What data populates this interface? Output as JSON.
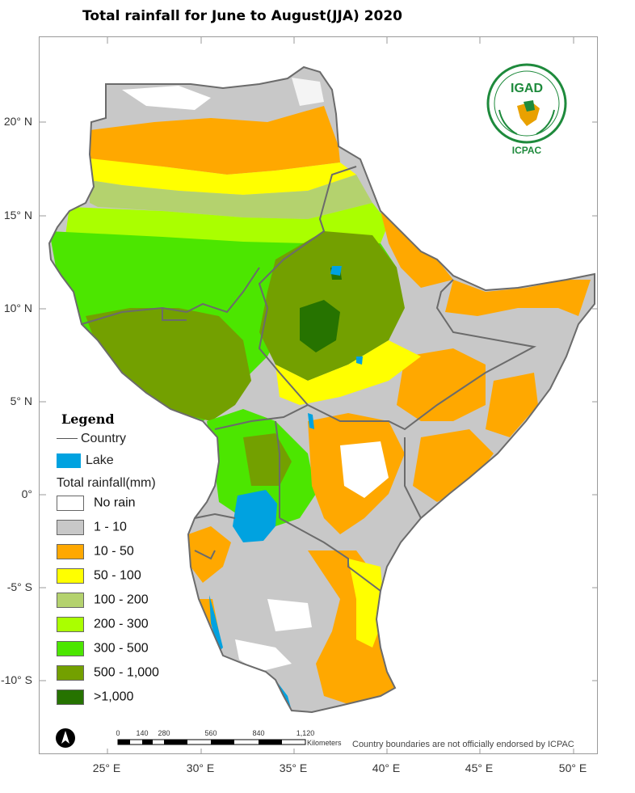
{
  "title": "Total rainfall for June to August(JJA) 2020",
  "lat_labels": [
    "20° N",
    "15° N",
    "10° N",
    "5° N",
    "0°",
    "-5° S",
    "-10° S"
  ],
  "lon_labels": [
    "25° E",
    "30° E",
    "35° E",
    "40° E",
    "45° E",
    "50° E"
  ],
  "legend": {
    "title": "Legend",
    "country_label": "Country",
    "lake_label": "Lake",
    "lake_color": "#00a2e0",
    "rainfall_title": "Total rainfall(mm)",
    "classes": [
      {
        "label": "No rain",
        "color": "#ffffff"
      },
      {
        "label": "1 - 10",
        "color": "#c8c8c8"
      },
      {
        "label": "10 - 50",
        "color": "#ffa800"
      },
      {
        "label": "50 - 100",
        "color": "#ffff00"
      },
      {
        "label": "100 - 200",
        "color": "#b4d26e"
      },
      {
        "label": "200 - 300",
        "color": "#aaff00"
      },
      {
        "label": "300 - 500",
        "color": "#4ce600"
      },
      {
        "label": "500 - 1,000",
        "color": "#73a000"
      },
      {
        "label": ">1,000",
        "color": "#267300"
      }
    ]
  },
  "logo": {
    "text_top": "IGAD",
    "text_bottom": "ICPAC",
    "ring_text": "INTERGOVERNMENTAL AUTHORITY ON DEVELOPMENT"
  },
  "scale_bar": {
    "ticks": [
      "0",
      "140",
      "280",
      "560",
      "840",
      "1,120"
    ],
    "unit": "Kilometers"
  },
  "disclaimer": "Country boundaries are not officially endorsed by ICPAC",
  "north_arrow_label": "N"
}
